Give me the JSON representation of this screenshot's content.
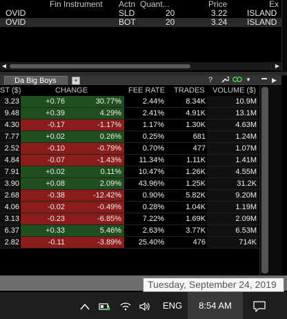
{
  "trades": {
    "headers": [
      "Fin Instrument",
      "Actn",
      "Quant...",
      "Price",
      "Ex"
    ],
    "rows": [
      {
        "symbol": "OVID",
        "action": "SLD",
        "quantity": "20",
        "price": "3.22",
        "exchange": "ISLAND"
      },
      {
        "symbol": "OVID",
        "action": "BOT",
        "quantity": "20",
        "price": "3.24",
        "exchange": "ISLAND"
      }
    ]
  },
  "scanner": {
    "tab_label": "Da Big Boys",
    "add_tab": "+",
    "help": "?",
    "columns": [
      "ST ($)",
      "CHANGE",
      "FEE RATE",
      "TRADES",
      "VOLUME ($)"
    ],
    "rows": [
      {
        "price": "3.23",
        "change": "+0.76",
        "pct": "30.77%",
        "fee": "2.44%",
        "trades": "8.34K",
        "volume": "10.9M",
        "dir": "pos"
      },
      {
        "price": "9.48",
        "change": "+0.39",
        "pct": "4.29%",
        "fee": "2.41%",
        "trades": "4.91K",
        "volume": "13.1M",
        "dir": "pos"
      },
      {
        "price": "4.30",
        "change": "-0.17",
        "pct": "-1.17%",
        "fee": "1.17%",
        "trades": "1.30K",
        "volume": "4.63M",
        "dir": "neg"
      },
      {
        "price": "7.77",
        "change": "+0.02",
        "pct": "0.26%",
        "fee": "0.25%",
        "trades": "681",
        "volume": "1.24M",
        "dir": "pos"
      },
      {
        "price": "2.52",
        "change": "-0.10",
        "pct": "-0.79%",
        "fee": "0.70%",
        "trades": "477",
        "volume": "1.07M",
        "dir": "neg"
      },
      {
        "price": "4.84",
        "change": "-0.07",
        "pct": "-1.43%",
        "fee": "11.34%",
        "trades": "1.11K",
        "volume": "1.41M",
        "dir": "neg"
      },
      {
        "price": "7.91",
        "change": "+0.02",
        "pct": "0.11%",
        "fee": "10.47%",
        "trades": "1.26K",
        "volume": "4.55M",
        "dir": "pos"
      },
      {
        "price": "3.90",
        "change": "+0.08",
        "pct": "2.09%",
        "fee": "43.96%",
        "trades": "1.25K",
        "volume": "31.2K",
        "dir": "pos"
      },
      {
        "price": "2.68",
        "change": "-0.38",
        "pct": "-12.42%",
        "fee": "0.90%",
        "trades": "5.82K",
        "volume": "9.20M",
        "dir": "neg"
      },
      {
        "price": "4.06",
        "change": "-0.02",
        "pct": "-0.49%",
        "fee": "0.28%",
        "trades": "1.04K",
        "volume": "1.19M",
        "dir": "neg"
      },
      {
        "price": "3.13",
        "change": "-0.23",
        "pct": "-6.85%",
        "fee": "7.22%",
        "trades": "1.69K",
        "volume": "2.09M",
        "dir": "neg"
      },
      {
        "price": "6.37",
        "change": "+0.33",
        "pct": "5.46%",
        "fee": "2.63%",
        "trades": "3.77K",
        "volume": "6.53M",
        "dir": "pos"
      },
      {
        "price": "2.82",
        "change": "-0.11",
        "pct": "-3.89%",
        "fee": "25.40%",
        "trades": "476",
        "volume": "714K",
        "dir": "neg"
      }
    ]
  },
  "tooltip": "Tuesday, September 24, 2019",
  "taskbar": {
    "language": "ENG",
    "time": "8:54 AM",
    "icons": [
      "chevron-up-icon",
      "battery-icon",
      "wifi-icon",
      "speaker-icon",
      "notification-icon"
    ]
  },
  "colors": {
    "positive": "#1f4f1f",
    "negative": "#8a1c1c",
    "link_icon": "#3fbf3f"
  }
}
